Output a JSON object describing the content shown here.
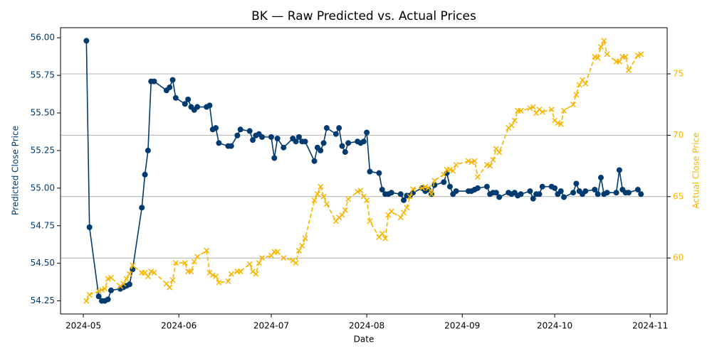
{
  "chart_data": {
    "type": "line",
    "title": "BK — Raw Predicted vs. Actual Prices",
    "xlabel": "Date",
    "ylabel": "Predicted Close Price",
    "y2label": "Actual Close Price",
    "x": [
      1,
      2,
      5,
      6,
      7,
      8,
      9,
      12,
      13,
      14,
      15,
      16,
      19,
      20,
      21,
      22,
      23,
      27,
      28,
      29,
      30,
      33,
      34,
      35,
      36,
      37,
      40,
      41,
      42,
      43,
      44,
      47,
      48,
      50,
      51,
      54,
      55,
      56,
      57,
      58,
      61,
      62,
      63,
      65,
      68,
      69,
      70,
      71,
      72,
      75,
      76,
      77,
      78,
      79,
      82,
      83,
      84,
      85,
      86,
      89,
      90,
      91,
      92,
      93,
      96,
      97,
      98,
      99,
      100,
      103,
      104,
      105,
      106,
      107,
      110,
      111,
      112,
      113,
      114,
      117,
      118,
      119,
      120,
      121,
      125,
      126,
      127,
      128,
      131,
      132,
      133,
      134,
      135,
      138,
      139,
      140,
      141,
      142,
      145,
      146,
      147,
      148,
      149,
      152,
      153,
      154,
      155,
      156,
      159,
      160,
      161,
      162,
      163,
      166,
      167,
      168,
      169,
      170,
      173,
      174,
      175,
      176,
      177,
      180,
      181
    ],
    "xlim": [
      -7.4,
      189.5
    ],
    "xticks": [
      {
        "value": 0,
        "label": "2024-05"
      },
      {
        "value": 31,
        "label": "2024-06"
      },
      {
        "value": 61,
        "label": "2024-07"
      },
      {
        "value": 92,
        "label": "2024-08"
      },
      {
        "value": 123,
        "label": "2024-09"
      },
      {
        "value": 153,
        "label": "2024-10"
      },
      {
        "value": 184,
        "label": "2024-11"
      }
    ],
    "ylim": [
      54.163,
      56.067
    ],
    "yticks": [
      54.25,
      {
        "value": 54.5,
        "label": "54.50"
      },
      54.75,
      {
        "value": 55,
        "label": "55.00"
      },
      55.25,
      {
        "value": 55.5,
        "label": "55.50"
      },
      55.75,
      {
        "value": 56,
        "label": "56.00"
      }
    ],
    "y2lim": [
      55.44,
      78.76
    ],
    "y2ticks": [
      60,
      65,
      70,
      75
    ],
    "grid": "y2",
    "series": [
      {
        "color": "#003b6f",
        "marker": "circle",
        "line": "solid",
        "values": [
          55.98,
          54.74,
          54.28,
          54.25,
          54.25,
          54.26,
          54.32,
          54.33,
          54.34,
          54.35,
          54.36,
          54.46,
          54.87,
          55.09,
          55.25,
          55.71,
          55.71,
          55.65,
          55.67,
          55.72,
          55.6,
          55.56,
          55.59,
          55.54,
          55.52,
          55.54,
          55.54,
          55.55,
          55.39,
          55.4,
          55.3,
          55.28,
          55.28,
          55.35,
          55.39,
          55.38,
          55.32,
          55.35,
          55.36,
          55.34,
          55.34,
          55.2,
          55.33,
          55.27,
          55.33,
          55.31,
          55.34,
          55.31,
          55.31,
          55.18,
          55.27,
          55.25,
          55.3,
          55.4,
          55.36,
          55.4,
          55.28,
          55.24,
          55.3,
          55.31,
          55.3,
          55.31,
          55.37,
          55.11,
          55.1,
          54.99,
          54.96,
          54.96,
          54.97,
          54.96,
          54.92,
          54.95,
          54.95,
          54.97,
          55.0,
          54.98,
          54.99,
          54.96,
          55.02,
          55.04,
          55.1,
          55.01,
          54.96,
          54.98,
          54.98,
          54.98,
          54.99,
          55.0,
          55.01,
          54.96,
          54.97,
          54.97,
          54.94,
          54.97,
          54.96,
          54.97,
          54.95,
          54.96,
          54.98,
          54.93,
          54.96,
          54.96,
          55.01,
          55.01,
          55.0,
          54.96,
          54.98,
          54.94,
          54.97,
          55.03,
          54.98,
          54.96,
          54.98,
          54.99,
          54.96,
          55.07,
          54.96,
          54.97,
          54.97,
          55.12,
          54.99,
          54.97,
          54.97,
          54.99,
          54.96
        ]
      },
      {
        "color": "#f7b500",
        "marker": "x",
        "line": "dashed",
        "axis": "y2",
        "values": [
          56.5,
          57.0,
          57.3,
          57.4,
          57.5,
          58.3,
          58.4,
          57.7,
          57.9,
          58.3,
          58.7,
          59.4,
          58.8,
          58.8,
          58.5,
          58.9,
          58.8,
          57.9,
          57.6,
          58.2,
          59.6,
          59.6,
          58.9,
          58.9,
          59.7,
          60.1,
          60.6,
          58.8,
          58.6,
          58.5,
          58.0,
          58.1,
          58.7,
          58.9,
          58.9,
          59.5,
          58.9,
          58.7,
          59.6,
          60.0,
          60.2,
          60.5,
          60.5,
          60.0,
          59.8,
          59.6,
          60.6,
          61.0,
          61.6,
          64.7,
          65.2,
          65.8,
          65.0,
          64.4,
          63.0,
          63.3,
          63.5,
          63.9,
          64.8,
          65.4,
          65.5,
          65.0,
          64.7,
          63.0,
          61.7,
          62.0,
          61.6,
          63.5,
          63.8,
          63.3,
          63.7,
          64.1,
          65.0,
          65.6,
          65.7,
          65.8,
          65.7,
          65.2,
          66.3,
          66.8,
          67.2,
          67.2,
          67.1,
          67.6,
          67.9,
          67.8,
          67.9,
          66.6,
          67.6,
          67.5,
          68.0,
          68.9,
          68.6,
          70.6,
          70.8,
          71.2,
          72.0,
          72.0,
          72.2,
          72.3,
          71.8,
          72.1,
          71.9,
          72.1,
          71.2,
          71.0,
          70.9,
          72.0,
          72.5,
          73.3,
          74.1,
          74.5,
          74.2,
          76.4,
          76.3,
          77.2,
          77.7,
          76.6,
          76.0,
          76.0,
          76.4,
          76.4,
          75.3,
          76.5,
          76.6
        ]
      }
    ]
  }
}
